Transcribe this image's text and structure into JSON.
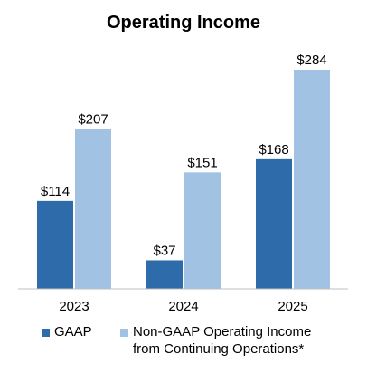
{
  "chart_data": {
    "type": "bar",
    "title": "Operating Income",
    "categories": [
      "2023",
      "2024",
      "2025"
    ],
    "series": [
      {
        "name": "GAAP",
        "values": [
          114,
          37,
          168
        ],
        "labels": [
          "$114",
          "$37",
          "$168"
        ],
        "color": "#2E6BAA"
      },
      {
        "name": "Non-GAAP Operating Income from Continuing Operations*",
        "name_lines": [
          "Non-GAAP Operating Income",
          "from Continuing Operations*"
        ],
        "values": [
          207,
          151,
          284
        ],
        "labels": [
          "$207",
          "$151",
          "$284"
        ],
        "color": "#A2C2E3"
      }
    ],
    "ylim": [
      0,
      300
    ],
    "grid": false,
    "legend_position": "bottom"
  }
}
